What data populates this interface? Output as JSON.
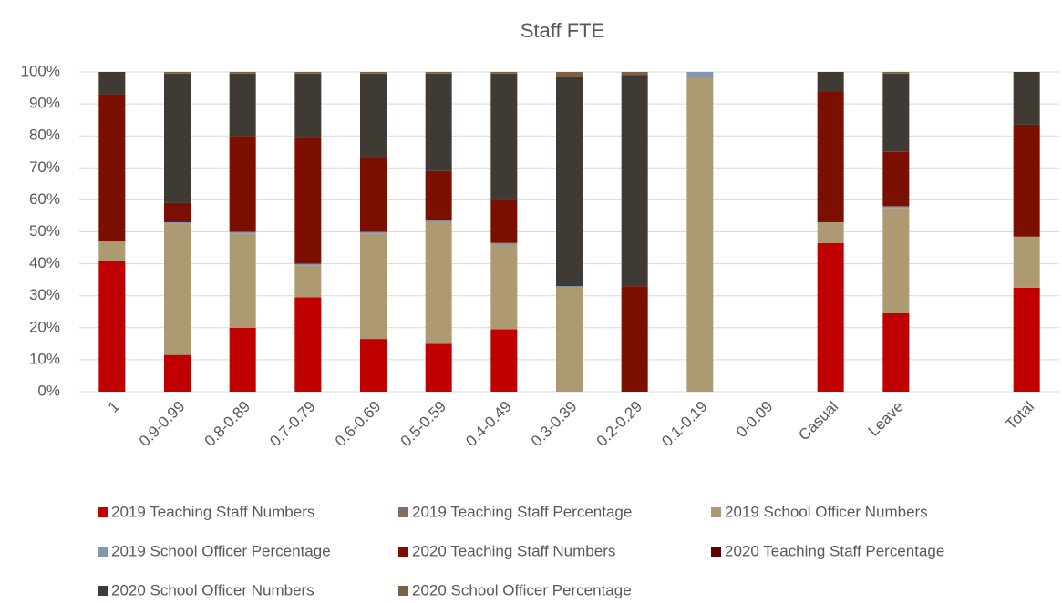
{
  "chart_data": {
    "type": "stacked_bar_100",
    "title": "Staff FTE",
    "categories": [
      "1",
      "0.9-0.99",
      "0.8-0.89",
      "0.7-0.79",
      "0.6-0.69",
      "0.5-0.59",
      "0.4-0.49",
      "0.3-0.39",
      "0.2-0.29",
      "0.1-0.19",
      "0-0.09",
      "Casual",
      "Leave",
      null,
      "Total"
    ],
    "series": [
      {
        "name": "2019 Teaching Staff Numbers",
        "color": "#c00000",
        "values": [
          41,
          11.5,
          20,
          29.5,
          16.5,
          15,
          19.5,
          0,
          0,
          0,
          0,
          46.5,
          24.5,
          null,
          32.5
        ]
      },
      {
        "name": "2019 Teaching Staff Percentage",
        "color": "#7f6f66",
        "values": [
          0,
          0,
          0,
          0,
          0,
          0,
          0,
          0,
          0,
          0,
          0,
          0,
          0,
          null,
          0
        ]
      },
      {
        "name": "2019 School Officer Numbers",
        "color": "#ae9a72",
        "values": [
          6,
          41,
          29.5,
          10,
          33,
          38,
          26.5,
          32.5,
          0,
          98,
          0,
          6.5,
          33,
          null,
          16
        ]
      },
      {
        "name": "2019 School Officer Percentage",
        "color": "#8496b0",
        "values": [
          0,
          0.5,
          0.5,
          0.5,
          0.5,
          0.5,
          0.5,
          0.5,
          0,
          2,
          0,
          0,
          0.5,
          null,
          0
        ]
      },
      {
        "name": "2020 Teaching Staff Numbers",
        "color": "#7b1000",
        "values": [
          46,
          6,
          30,
          39.5,
          23,
          15.5,
          13.5,
          0,
          33,
          0,
          0,
          41,
          17,
          null,
          35
        ]
      },
      {
        "name": "2020 Teaching Staff Percentage",
        "color": "#5e0000",
        "values": [
          0,
          0,
          0,
          0,
          0,
          0,
          0,
          0,
          0,
          0,
          0,
          0,
          0,
          null,
          0
        ]
      },
      {
        "name": "2020 School Officer Numbers",
        "color": "#403a35",
        "values": [
          7,
          40.5,
          19.5,
          20,
          26.5,
          30.5,
          39.5,
          65.5,
          66,
          0,
          0,
          6,
          24.5,
          null,
          16.5
        ]
      },
      {
        "name": "2020 School Officer Percentage",
        "color": "#7b6245",
        "values": [
          0,
          0.5,
          0.5,
          0.5,
          0.5,
          0.5,
          0.5,
          1.5,
          1,
          0,
          0,
          0,
          0.5,
          null,
          0
        ]
      }
    ],
    "ylim": [
      0,
      100
    ],
    "yticks": [
      {
        "value": 0,
        "label": "0%"
      },
      {
        "value": 10,
        "label": "10%"
      },
      {
        "value": 20,
        "label": "20%"
      },
      {
        "value": 30,
        "label": "30%"
      },
      {
        "value": 40,
        "label": "40%"
      },
      {
        "value": 50,
        "label": "50%"
      },
      {
        "value": 60,
        "label": "60%"
      },
      {
        "value": 70,
        "label": "70%"
      },
      {
        "value": 80,
        "label": "80%"
      },
      {
        "value": 90,
        "label": "90%"
      },
      {
        "value": 100,
        "label": "100%"
      }
    ],
    "grid": true,
    "legend": "bottom"
  }
}
